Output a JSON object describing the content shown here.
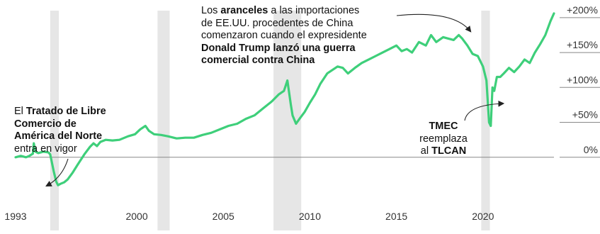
{
  "chart_data": {
    "type": "line",
    "title": "",
    "xlabel": "",
    "ylabel": "",
    "xlim": [
      1993,
      2024.1
    ],
    "ylim": [
      -50,
      210
    ],
    "grid": "horizontal",
    "line_color": "#3ecf7a",
    "band_color": "#e6e6e6",
    "x_ticks": [
      {
        "value": 1993,
        "label": "1993"
      },
      {
        "value": 2000,
        "label": "2000"
      },
      {
        "value": 2005,
        "label": "2005"
      },
      {
        "value": 2010,
        "label": "2010"
      },
      {
        "value": 2015,
        "label": "2015"
      },
      {
        "value": 2020,
        "label": "2020"
      }
    ],
    "y_ticks": [
      {
        "value": 200,
        "label": "+200%"
      },
      {
        "value": 150,
        "label": "+150%"
      },
      {
        "value": 100,
        "label": "+100%"
      },
      {
        "value": 50,
        "label": "+50%"
      },
      {
        "value": 0,
        "label": "0%"
      }
    ],
    "shaded_periods": [
      {
        "start": 1995.0,
        "end": 1995.5
      },
      {
        "start": 2001.2,
        "end": 2001.9
      },
      {
        "start": 2007.9,
        "end": 2009.5
      },
      {
        "start": 2019.9,
        "end": 2020.4
      }
    ],
    "series": [
      {
        "x": [
          1993.0,
          1993.3,
          1993.6,
          1993.8,
          1994.0,
          1994.05,
          1994.15,
          1994.3,
          1994.6,
          1994.9,
          1995.0,
          1995.2,
          1995.35,
          1995.45,
          1995.6,
          1995.8,
          1996.0,
          1996.3,
          1996.6,
          1997.0,
          1997.3,
          1997.5,
          1997.7,
          1997.9,
          1998.2,
          1998.6,
          1999.0,
          1999.5,
          1999.9,
          2000.2,
          2000.5,
          2000.7,
          2001.0,
          2001.4,
          2001.8,
          2002.3,
          2002.8,
          2003.3,
          2003.8,
          2004.3,
          2004.8,
          2005.3,
          2005.8,
          2006.3,
          2006.8,
          2007.3,
          2007.8,
          2008.2,
          2008.5,
          2008.7,
          2008.9,
          2009.0,
          2009.2,
          2009.4,
          2009.7,
          2010.0,
          2010.3,
          2010.6,
          2011.0,
          2011.3,
          2011.6,
          2011.9,
          2012.2,
          2012.6,
          2013.0,
          2013.4,
          2013.8,
          2014.2,
          2014.6,
          2015.0,
          2015.3,
          2015.6,
          2015.9,
          2016.3,
          2016.7,
          2017.0,
          2017.3,
          2017.7,
          2018.0,
          2018.3,
          2018.6,
          2018.8,
          2019.1,
          2019.4,
          2019.7,
          2020.0,
          2020.2,
          2020.35,
          2020.45,
          2020.55,
          2020.65,
          2020.8,
          2021.0,
          2021.2,
          2021.5,
          2021.8,
          2022.1,
          2022.4,
          2022.7,
          2023.0,
          2023.3,
          2023.6,
          2023.9,
          2024.1
        ],
        "y": [
          0,
          2,
          0,
          2,
          5,
          20,
          8,
          6,
          8,
          7,
          4,
          -20,
          -35,
          -40,
          -38,
          -36,
          -32,
          -22,
          -10,
          5,
          15,
          20,
          16,
          22,
          25,
          24,
          25,
          30,
          33,
          40,
          45,
          38,
          33,
          32,
          30,
          27,
          28,
          28,
          32,
          35,
          40,
          45,
          48,
          55,
          60,
          70,
          80,
          90,
          95,
          110,
          75,
          60,
          48,
          55,
          65,
          78,
          90,
          105,
          120,
          125,
          130,
          128,
          120,
          128,
          135,
          140,
          145,
          150,
          155,
          160,
          152,
          155,
          150,
          165,
          160,
          175,
          165,
          172,
          170,
          168,
          175,
          170,
          160,
          148,
          145,
          130,
          110,
          50,
          45,
          100,
          95,
          115,
          115,
          120,
          128,
          122,
          130,
          140,
          135,
          150,
          162,
          175,
          195,
          206
        ]
      }
    ],
    "annotations": [
      {
        "id": "tlcan",
        "runs": [
          [
            "El ",
            false
          ],
          [
            "Tratado de Libre",
            true
          ],
          [
            "\n",
            false
          ],
          [
            "Comercio de",
            true
          ],
          [
            "\n",
            false
          ],
          [
            "América del Norte",
            true
          ],
          [
            "\n",
            false
          ],
          [
            "entra en vigor",
            false
          ]
        ]
      },
      {
        "id": "aranceles",
        "runs": [
          [
            "Los ",
            false
          ],
          [
            "aranceles",
            true
          ],
          [
            " a las importaciones",
            false
          ],
          [
            "\n",
            false
          ],
          [
            "de EE.UU. procedentes de China",
            false
          ],
          [
            "\n",
            false
          ],
          [
            "comenzaron cuando el expresidente",
            false
          ],
          [
            "\n",
            false
          ],
          [
            "Donald Trump lanzó una guerra",
            true
          ],
          [
            "\n",
            false
          ],
          [
            "comercial contra China",
            true
          ]
        ]
      },
      {
        "id": "tmec",
        "runs": [
          [
            "TMEC",
            true
          ],
          [
            "\n",
            false
          ],
          [
            "reemplaza",
            false
          ],
          [
            "\n",
            false
          ],
          [
            "al ",
            false
          ],
          [
            "TLCAN",
            true
          ]
        ]
      }
    ]
  }
}
